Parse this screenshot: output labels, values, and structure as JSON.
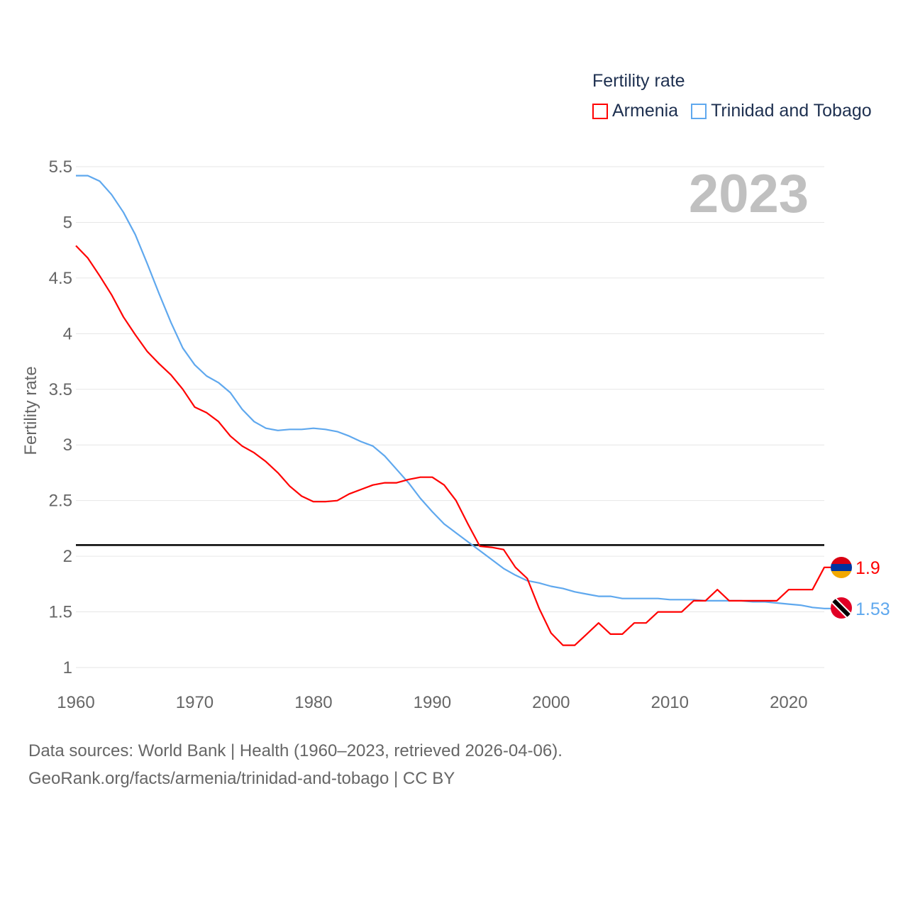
{
  "legend": {
    "title": "Fertility rate",
    "items": [
      {
        "label": "Armenia",
        "color": "#ff0000"
      },
      {
        "label": "Trinidad and Tobago",
        "color": "#5fa8ee"
      }
    ]
  },
  "footer": {
    "line1": "Data sources: World Bank | Health (1960–2023, retrieved 2026-04-06).",
    "line2": "GeoRank.org/facts/armenia/trinidad-and-tobago | CC BY"
  },
  "chart_data": {
    "type": "line",
    "title": "Fertility rate",
    "year_label": "2023",
    "xlabel": "",
    "ylabel": "Fertility rate",
    "xlim": [
      1960,
      2023
    ],
    "ylim": [
      1,
      5.5
    ],
    "xticks": [
      "1960",
      "1970",
      "1980",
      "1990",
      "2000",
      "2010",
      "2020"
    ],
    "yticks": [
      "1",
      "1.5",
      "2",
      "2.5",
      "3",
      "3.5",
      "4",
      "4.5",
      "5",
      "5.5"
    ],
    "grid": true,
    "legend_position": "top-right",
    "reference_line": {
      "y": 2.1,
      "color": "#000000"
    },
    "x": [
      1960,
      1961,
      1962,
      1963,
      1964,
      1965,
      1966,
      1967,
      1968,
      1969,
      1970,
      1971,
      1972,
      1973,
      1974,
      1975,
      1976,
      1977,
      1978,
      1979,
      1980,
      1981,
      1982,
      1983,
      1984,
      1985,
      1986,
      1987,
      1988,
      1989,
      1990,
      1991,
      1992,
      1993,
      1994,
      1995,
      1996,
      1997,
      1998,
      1999,
      2000,
      2001,
      2002,
      2003,
      2004,
      2005,
      2006,
      2007,
      2008,
      2009,
      2010,
      2011,
      2012,
      2013,
      2014,
      2015,
      2016,
      2017,
      2018,
      2019,
      2020,
      2021,
      2022,
      2023
    ],
    "series": [
      {
        "name": "Armenia",
        "color": "#ff0000",
        "end_label": "1.9",
        "values": [
          4.79,
          4.68,
          4.52,
          4.35,
          4.15,
          3.99,
          3.84,
          3.73,
          3.63,
          3.5,
          3.34,
          3.29,
          3.21,
          3.08,
          2.99,
          2.93,
          2.85,
          2.75,
          2.63,
          2.54,
          2.49,
          2.49,
          2.5,
          2.56,
          2.6,
          2.64,
          2.66,
          2.66,
          2.69,
          2.71,
          2.71,
          2.64,
          2.5,
          2.29,
          2.09,
          2.08,
          2.06,
          1.9,
          1.8,
          1.53,
          1.31,
          1.2,
          1.2,
          1.3,
          1.4,
          1.3,
          1.3,
          1.4,
          1.4,
          1.5,
          1.5,
          1.5,
          1.6,
          1.6,
          1.7,
          1.6,
          1.6,
          1.6,
          1.6,
          1.6,
          1.7,
          1.7,
          1.7,
          1.9
        ]
      },
      {
        "name": "Trinidad and Tobago",
        "color": "#5fa8ee",
        "end_label": "1.53",
        "values": [
          5.42,
          5.42,
          5.37,
          5.25,
          5.09,
          4.89,
          4.63,
          4.36,
          4.1,
          3.87,
          3.72,
          3.62,
          3.56,
          3.47,
          3.32,
          3.21,
          3.15,
          3.13,
          3.14,
          3.14,
          3.15,
          3.14,
          3.12,
          3.08,
          3.03,
          2.99,
          2.9,
          2.78,
          2.66,
          2.52,
          2.4,
          2.29,
          2.21,
          2.13,
          2.05,
          1.97,
          1.89,
          1.83,
          1.78,
          1.76,
          1.73,
          1.71,
          1.68,
          1.66,
          1.64,
          1.64,
          1.62,
          1.62,
          1.62,
          1.62,
          1.61,
          1.61,
          1.61,
          1.6,
          1.6,
          1.6,
          1.6,
          1.59,
          1.59,
          1.58,
          1.57,
          1.56,
          1.54,
          1.53
        ]
      }
    ]
  }
}
